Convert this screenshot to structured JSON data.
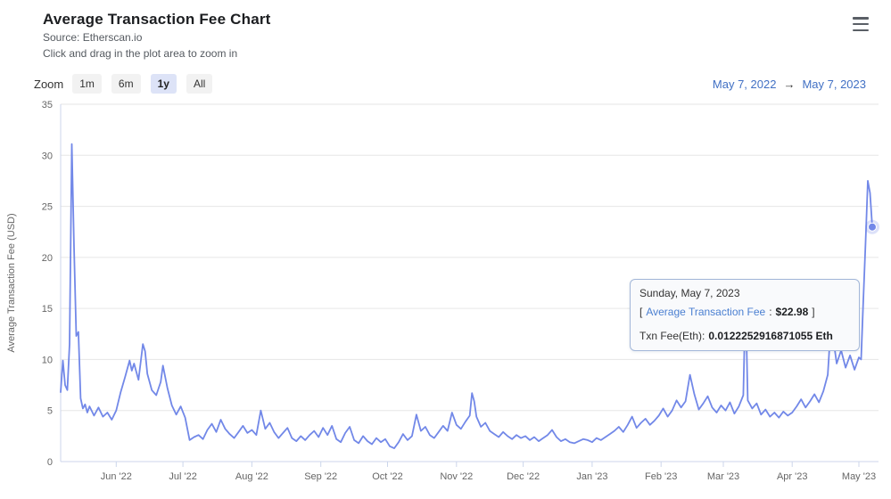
{
  "header": {
    "title": "Average Transaction Fee Chart",
    "source": "Source: Etherscan.io",
    "hint": "Click and drag in the plot area to zoom in"
  },
  "toolbar": {
    "zoom_label": "Zoom",
    "buttons": [
      "1m",
      "6m",
      "1y",
      "All"
    ],
    "selected": "1y",
    "range_from": "May 7, 2022",
    "range_arrow": "→",
    "range_to": "May 7, 2023"
  },
  "tooltip": {
    "date": "Sunday, May 7, 2023",
    "bracket_open": "[",
    "series_label": "Average Transaction Fee",
    "separator": ":",
    "value": "$22.98",
    "bracket_close": "]",
    "txn_label": "Txn Fee(Eth):",
    "txn_value": "0.0122252916871055 Eth"
  },
  "colors": {
    "line": "#7288e8",
    "grid": "#e6e6e6",
    "axis": "#ccd6eb",
    "text_muted": "#666666",
    "link": "#4170c4",
    "tooltip_series": "#4a7fd1",
    "tooltip_border": "#a3b7d9",
    "tooltip_bg": "#f9fafc",
    "zoom_selected_bg": "#dde3f7",
    "zoom_button_bg": "#f2f2f2"
  },
  "chart_data": {
    "type": "line",
    "title": "Average Transaction Fee Chart",
    "series_name": "Average Transaction Fee",
    "xlabel": "",
    "ylabel": "Average Transaction Fee (USD)",
    "ylim": [
      0,
      35
    ],
    "ytick_step": 5,
    "grid": true,
    "legend": "none",
    "x_range": [
      "2022-05-07",
      "2023-05-07"
    ],
    "x_ticks": [
      {
        "label": "Jun '22",
        "date": "2022-06-01"
      },
      {
        "label": "Jul '22",
        "date": "2022-07-01"
      },
      {
        "label": "Aug '22",
        "date": "2022-08-01"
      },
      {
        "label": "Sep '22",
        "date": "2022-09-01"
      },
      {
        "label": "Oct '22",
        "date": "2022-10-01"
      },
      {
        "label": "Nov '22",
        "date": "2022-11-01"
      },
      {
        "label": "Dec '22",
        "date": "2022-12-01"
      },
      {
        "label": "Jan '23",
        "date": "2023-01-01"
      },
      {
        "label": "Feb '23",
        "date": "2023-02-01"
      },
      {
        "label": "Mar '23",
        "date": "2023-03-01"
      },
      {
        "label": "Apr '23",
        "date": "2023-04-01"
      },
      {
        "label": "May '23",
        "date": "2023-05-01"
      }
    ],
    "highlighted_point": {
      "date": "2023-05-07",
      "value_usd": 22.98,
      "txn_fee_eth": "0.0122252916871055"
    },
    "points": [
      [
        "2022-05-07",
        6.8
      ],
      [
        "2022-05-08",
        9.9
      ],
      [
        "2022-05-09",
        7.5
      ],
      [
        "2022-05-10",
        7.0
      ],
      [
        "2022-05-11",
        11.5
      ],
      [
        "2022-05-12",
        31.1
      ],
      [
        "2022-05-13",
        21.0
      ],
      [
        "2022-05-14",
        12.3
      ],
      [
        "2022-05-15",
        12.7
      ],
      [
        "2022-05-16",
        6.2
      ],
      [
        "2022-05-17",
        5.2
      ],
      [
        "2022-05-18",
        5.6
      ],
      [
        "2022-05-19",
        4.8
      ],
      [
        "2022-05-20",
        5.4
      ],
      [
        "2022-05-22",
        4.5
      ],
      [
        "2022-05-24",
        5.3
      ],
      [
        "2022-05-26",
        4.4
      ],
      [
        "2022-05-28",
        4.8
      ],
      [
        "2022-05-30",
        4.1
      ],
      [
        "2022-06-01",
        5.0
      ],
      [
        "2022-06-03",
        6.8
      ],
      [
        "2022-06-05",
        8.3
      ],
      [
        "2022-06-07",
        9.9
      ],
      [
        "2022-06-08",
        8.9
      ],
      [
        "2022-06-09",
        9.6
      ],
      [
        "2022-06-11",
        8.0
      ],
      [
        "2022-06-13",
        11.5
      ],
      [
        "2022-06-14",
        10.8
      ],
      [
        "2022-06-15",
        8.6
      ],
      [
        "2022-06-17",
        7.0
      ],
      [
        "2022-06-19",
        6.5
      ],
      [
        "2022-06-21",
        7.8
      ],
      [
        "2022-06-22",
        9.4
      ],
      [
        "2022-06-24",
        7.2
      ],
      [
        "2022-06-26",
        5.5
      ],
      [
        "2022-06-28",
        4.6
      ],
      [
        "2022-06-30",
        5.4
      ],
      [
        "2022-07-02",
        4.3
      ],
      [
        "2022-07-04",
        2.1
      ],
      [
        "2022-07-06",
        2.4
      ],
      [
        "2022-07-08",
        2.6
      ],
      [
        "2022-07-10",
        2.2
      ],
      [
        "2022-07-12",
        3.1
      ],
      [
        "2022-07-14",
        3.7
      ],
      [
        "2022-07-16",
        2.9
      ],
      [
        "2022-07-18",
        4.1
      ],
      [
        "2022-07-20",
        3.2
      ],
      [
        "2022-07-22",
        2.7
      ],
      [
        "2022-07-24",
        2.3
      ],
      [
        "2022-07-26",
        2.9
      ],
      [
        "2022-07-28",
        3.5
      ],
      [
        "2022-07-30",
        2.8
      ],
      [
        "2022-08-01",
        3.1
      ],
      [
        "2022-08-03",
        2.6
      ],
      [
        "2022-08-05",
        5.0
      ],
      [
        "2022-08-07",
        3.2
      ],
      [
        "2022-08-09",
        3.8
      ],
      [
        "2022-08-11",
        2.9
      ],
      [
        "2022-08-13",
        2.3
      ],
      [
        "2022-08-15",
        2.8
      ],
      [
        "2022-08-17",
        3.3
      ],
      [
        "2022-08-19",
        2.3
      ],
      [
        "2022-08-21",
        2.0
      ],
      [
        "2022-08-23",
        2.5
      ],
      [
        "2022-08-25",
        2.1
      ],
      [
        "2022-08-27",
        2.6
      ],
      [
        "2022-08-29",
        3.0
      ],
      [
        "2022-08-31",
        2.4
      ],
      [
        "2022-09-02",
        3.3
      ],
      [
        "2022-09-04",
        2.6
      ],
      [
        "2022-09-06",
        3.5
      ],
      [
        "2022-09-08",
        2.2
      ],
      [
        "2022-09-10",
        1.9
      ],
      [
        "2022-09-12",
        2.8
      ],
      [
        "2022-09-14",
        3.4
      ],
      [
        "2022-09-16",
        2.1
      ],
      [
        "2022-09-18",
        1.8
      ],
      [
        "2022-09-20",
        2.5
      ],
      [
        "2022-09-22",
        2.0
      ],
      [
        "2022-09-24",
        1.7
      ],
      [
        "2022-09-26",
        2.3
      ],
      [
        "2022-09-28",
        1.9
      ],
      [
        "2022-09-30",
        2.2
      ],
      [
        "2022-10-02",
        1.5
      ],
      [
        "2022-10-04",
        1.3
      ],
      [
        "2022-10-06",
        1.9
      ],
      [
        "2022-10-08",
        2.7
      ],
      [
        "2022-10-10",
        2.1
      ],
      [
        "2022-10-12",
        2.5
      ],
      [
        "2022-10-14",
        4.6
      ],
      [
        "2022-10-16",
        3.0
      ],
      [
        "2022-10-18",
        3.4
      ],
      [
        "2022-10-20",
        2.6
      ],
      [
        "2022-10-22",
        2.3
      ],
      [
        "2022-10-24",
        2.9
      ],
      [
        "2022-10-26",
        3.5
      ],
      [
        "2022-10-28",
        3.0
      ],
      [
        "2022-10-30",
        4.8
      ],
      [
        "2022-11-01",
        3.6
      ],
      [
        "2022-11-03",
        3.2
      ],
      [
        "2022-11-05",
        3.9
      ],
      [
        "2022-11-07",
        4.5
      ],
      [
        "2022-11-08",
        6.7
      ],
      [
        "2022-11-09",
        5.9
      ],
      [
        "2022-11-10",
        4.4
      ],
      [
        "2022-11-12",
        3.4
      ],
      [
        "2022-11-14",
        3.8
      ],
      [
        "2022-11-16",
        3.0
      ],
      [
        "2022-11-18",
        2.7
      ],
      [
        "2022-11-20",
        2.4
      ],
      [
        "2022-11-22",
        2.9
      ],
      [
        "2022-11-24",
        2.5
      ],
      [
        "2022-11-26",
        2.2
      ],
      [
        "2022-11-28",
        2.6
      ],
      [
        "2022-11-30",
        2.3
      ],
      [
        "2022-12-02",
        2.5
      ],
      [
        "2022-12-04",
        2.1
      ],
      [
        "2022-12-06",
        2.4
      ],
      [
        "2022-12-08",
        2.0
      ],
      [
        "2022-12-10",
        2.3
      ],
      [
        "2022-12-12",
        2.6
      ],
      [
        "2022-12-14",
        3.1
      ],
      [
        "2022-12-16",
        2.4
      ],
      [
        "2022-12-18",
        2.0
      ],
      [
        "2022-12-20",
        2.2
      ],
      [
        "2022-12-22",
        1.9
      ],
      [
        "2022-12-24",
        1.8
      ],
      [
        "2022-12-26",
        2.0
      ],
      [
        "2022-12-28",
        2.2
      ],
      [
        "2022-12-30",
        2.1
      ],
      [
        "2023-01-01",
        1.9
      ],
      [
        "2023-01-03",
        2.3
      ],
      [
        "2023-01-05",
        2.1
      ],
      [
        "2023-01-07",
        2.4
      ],
      [
        "2023-01-09",
        2.7
      ],
      [
        "2023-01-11",
        3.0
      ],
      [
        "2023-01-13",
        3.4
      ],
      [
        "2023-01-15",
        2.9
      ],
      [
        "2023-01-17",
        3.6
      ],
      [
        "2023-01-19",
        4.4
      ],
      [
        "2023-01-21",
        3.3
      ],
      [
        "2023-01-23",
        3.8
      ],
      [
        "2023-01-25",
        4.2
      ],
      [
        "2023-01-27",
        3.6
      ],
      [
        "2023-01-29",
        4.0
      ],
      [
        "2023-01-31",
        4.5
      ],
      [
        "2023-02-02",
        5.2
      ],
      [
        "2023-02-04",
        4.4
      ],
      [
        "2023-02-06",
        5.0
      ],
      [
        "2023-02-08",
        6.0
      ],
      [
        "2023-02-10",
        5.3
      ],
      [
        "2023-02-12",
        5.9
      ],
      [
        "2023-02-14",
        8.5
      ],
      [
        "2023-02-16",
        6.6
      ],
      [
        "2023-02-18",
        5.1
      ],
      [
        "2023-02-20",
        5.7
      ],
      [
        "2023-02-22",
        6.4
      ],
      [
        "2023-02-24",
        5.3
      ],
      [
        "2023-02-26",
        4.8
      ],
      [
        "2023-02-28",
        5.5
      ],
      [
        "2023-03-02",
        5.0
      ],
      [
        "2023-03-04",
        5.8
      ],
      [
        "2023-03-06",
        4.7
      ],
      [
        "2023-03-08",
        5.4
      ],
      [
        "2023-03-10",
        6.5
      ],
      [
        "2023-03-11",
        16.3
      ],
      [
        "2023-03-12",
        6.0
      ],
      [
        "2023-03-14",
        5.2
      ],
      [
        "2023-03-16",
        5.7
      ],
      [
        "2023-03-18",
        4.6
      ],
      [
        "2023-03-20",
        5.1
      ],
      [
        "2023-03-22",
        4.4
      ],
      [
        "2023-03-24",
        4.8
      ],
      [
        "2023-03-26",
        4.3
      ],
      [
        "2023-03-28",
        4.9
      ],
      [
        "2023-03-30",
        4.5
      ],
      [
        "2023-04-01",
        4.8
      ],
      [
        "2023-04-03",
        5.4
      ],
      [
        "2023-04-05",
        6.1
      ],
      [
        "2023-04-07",
        5.3
      ],
      [
        "2023-04-09",
        5.9
      ],
      [
        "2023-04-11",
        6.6
      ],
      [
        "2023-04-13",
        5.8
      ],
      [
        "2023-04-15",
        6.9
      ],
      [
        "2023-04-17",
        8.5
      ],
      [
        "2023-04-19",
        15.5
      ],
      [
        "2023-04-20",
        11.2
      ],
      [
        "2023-04-21",
        9.6
      ],
      [
        "2023-04-23",
        10.9
      ],
      [
        "2023-04-25",
        9.2
      ],
      [
        "2023-04-27",
        10.4
      ],
      [
        "2023-04-29",
        9.0
      ],
      [
        "2023-05-01",
        10.2
      ],
      [
        "2023-05-02",
        10.0
      ],
      [
        "2023-05-03",
        15.9
      ],
      [
        "2023-05-04",
        21.5
      ],
      [
        "2023-05-05",
        27.5
      ],
      [
        "2023-05-06",
        26.3
      ],
      [
        "2023-05-07",
        22.98
      ]
    ]
  }
}
